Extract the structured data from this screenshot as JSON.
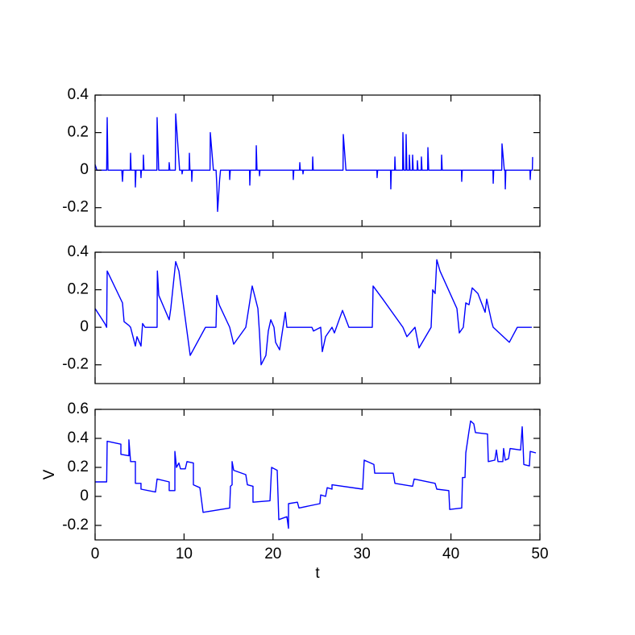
{
  "chart_data": [
    {
      "type": "line",
      "xlim": [
        0,
        50
      ],
      "xticks": [
        0,
        10,
        20,
        30,
        40,
        50
      ],
      "ylim": [
        -0.3,
        0.4
      ],
      "yticks": [
        -0.2,
        0,
        0.2,
        0.4
      ],
      "x": [
        0,
        0.2,
        1.3,
        1.36,
        1.45,
        3.0,
        3.08,
        3.15,
        3.95,
        3.99,
        4.05,
        4.5,
        4.53,
        4.6,
        5.12,
        5.16,
        5.2,
        5.4,
        5.43,
        5.5,
        6.95,
        6.97,
        7.15,
        8.3,
        8.33,
        8.4,
        9.02,
        9.06,
        9.5,
        9.75,
        9.78,
        9.85,
        10.57,
        10.6,
        10.66,
        10.84,
        10.87,
        10.93,
        12.92,
        12.95,
        13.3,
        13.6,
        13.7,
        13.77,
        14.0,
        14.1,
        15.1,
        15.13,
        15.2,
        17.36,
        17.39,
        17.45,
        18.09,
        18.12,
        18.2,
        18.45,
        18.48,
        18.54,
        22.25,
        22.28,
        22.34,
        22.98,
        23.01,
        23.07,
        23.34,
        23.37,
        23.43,
        24.43,
        24.46,
        24.52,
        27.87,
        27.9,
        28.2,
        31.67,
        31.7,
        31.76,
        33.21,
        33.24,
        33.3,
        33.67,
        33.7,
        33.76,
        34.57,
        34.6,
        34.7,
        34.93,
        34.96,
        35.05,
        35.3,
        35.33,
        35.4,
        35.66,
        35.69,
        35.76,
        36.2,
        36.23,
        36.3,
        36.65,
        36.68,
        36.75,
        37.38,
        37.41,
        37.5,
        38.92,
        38.95,
        39.02,
        41.18,
        41.21,
        41.27,
        44.72,
        44.75,
        44.81,
        45.71,
        45.74,
        46.0,
        46.08,
        46.11,
        46.17,
        48.88,
        48.91,
        48.97,
        49.15,
        49.18
      ],
      "series": [
        {
          "color": "#0000ff",
          "values": [
            0.03,
            0,
            0,
            0.28,
            0,
            0,
            -0.06,
            0,
            0,
            0.09,
            0,
            0,
            -0.09,
            0,
            0,
            -0.04,
            0,
            0,
            0.08,
            0,
            0,
            0.28,
            0,
            0,
            0.04,
            0,
            0,
            0.3,
            0,
            0,
            -0.02,
            0,
            0,
            0.09,
            0,
            0,
            -0.06,
            0,
            0,
            0.2,
            0,
            0,
            -0.1,
            -0.22,
            -0.05,
            0,
            0,
            -0.05,
            0,
            0,
            -0.08,
            0,
            0,
            0.13,
            0,
            0,
            -0.03,
            0,
            0,
            -0.05,
            0,
            0,
            0.04,
            0,
            0,
            -0.02,
            0,
            0,
            0.07,
            0,
            0,
            0.19,
            0,
            0,
            -0.04,
            0,
            0,
            -0.1,
            0,
            0,
            0.07,
            0,
            0,
            0.2,
            0,
            0,
            0.19,
            0,
            0,
            0.08,
            0,
            0,
            0.08,
            0,
            0,
            0.05,
            0,
            0,
            0.07,
            0,
            0,
            0.12,
            0,
            0,
            0.08,
            0,
            0,
            -0.06,
            0,
            0,
            -0.07,
            0,
            0,
            0.14,
            0,
            0,
            -0.1,
            0,
            0,
            -0.05,
            0,
            0,
            0.07
          ]
        }
      ]
    },
    {
      "type": "line",
      "xlim": [
        0,
        50
      ],
      "xticks": [
        0,
        10,
        20,
        30,
        40,
        50
      ],
      "ylim": [
        -0.3,
        0.4
      ],
      "yticks": [
        -0.2,
        0,
        0.2,
        0.4
      ],
      "x": [
        0,
        1.09,
        1.3,
        1.36,
        3.08,
        3.26,
        3.8,
        3.99,
        4.53,
        4.71,
        5.16,
        5.34,
        5.62,
        6.97,
        7.0,
        7.16,
        8.33,
        8.51,
        9.06,
        9.42,
        10.69,
        12.41,
        13.59,
        13.68,
        13.95,
        15.13,
        15.58,
        16.94,
        17.66,
        18.3,
        18.48,
        18.66,
        19.2,
        19.47,
        19.75,
        20.11,
        20.29,
        20.74,
        21.38,
        21.56,
        24.37,
        24.55,
        25.36,
        25.54,
        25.91,
        26.63,
        26.9,
        27.81,
        28.53,
        31.16,
        31.25,
        32.34,
        34.6,
        35.05,
        35.96,
        36.41,
        37.77,
        37.95,
        38.22,
        38.41,
        38.77,
        40.67,
        40.94,
        41.39,
        41.67,
        42.03,
        42.39,
        43.03,
        43.84,
        44.02,
        44.57,
        44.75,
        46.56,
        47.46,
        49.09
      ],
      "series": [
        {
          "color": "#0000ff",
          "values": [
            0.1,
            0.02,
            0,
            0.3,
            0.13,
            0.03,
            0.01,
            0,
            -0.1,
            -0.05,
            -0.1,
            0.02,
            0,
            0,
            0.3,
            0.17,
            0.04,
            0.1,
            0.35,
            0.3,
            -0.15,
            0,
            0,
            0.17,
            0.12,
            0,
            -0.09,
            0,
            0.22,
            0.1,
            -0.03,
            -0.2,
            -0.15,
            -0.02,
            0.04,
            0,
            -0.08,
            -0.12,
            0.08,
            0,
            0,
            -0.02,
            0,
            -0.13,
            -0.05,
            0,
            -0.03,
            0.09,
            0,
            0,
            0.22,
            0.15,
            0,
            -0.05,
            0,
            -0.11,
            0,
            0.2,
            0.18,
            0.36,
            0.3,
            0.1,
            -0.03,
            0,
            0.13,
            0.12,
            0.21,
            0.18,
            0.08,
            0.15,
            0.03,
            0,
            -0.08,
            0,
            0
          ]
        }
      ]
    },
    {
      "type": "line",
      "xlabel": "t",
      "ylabel": "V",
      "xlim": [
        0,
        50
      ],
      "xticks": [
        0,
        10,
        20,
        30,
        40,
        50
      ],
      "ylim": [
        -0.3,
        0.6
      ],
      "yticks": [
        -0.2,
        0,
        0.2,
        0.4,
        0.6
      ],
      "x": [
        0,
        1.3,
        1.36,
        2.9,
        2.9,
        3.8,
        3.8,
        3.99,
        4.53,
        4.53,
        5.16,
        5.16,
        6.79,
        6.97,
        8.33,
        8.33,
        8.97,
        8.97,
        9.15,
        9.42,
        9.6,
        10.14,
        10.33,
        11.05,
        11.05,
        11.78,
        12.14,
        15.13,
        15.22,
        15.4,
        15.4,
        15.58,
        16.94,
        17.12,
        17.75,
        17.75,
        19.66,
        19.84,
        20.47,
        20.56,
        20.65,
        21.56,
        21.74,
        21.74,
        22.74,
        22.92,
        25.27,
        25.36,
        25.91,
        26.09,
        26.63,
        26.63,
        30.07,
        30.25,
        31.34,
        31.43,
        33.51,
        33.7,
        35.69,
        35.87,
        38.22,
        38.41,
        39.76,
        39.86,
        41.21,
        41.3,
        41.58,
        41.67,
        42.03,
        42.21,
        42.57,
        42.75,
        44.11,
        44.2,
        44.93,
        45.11,
        45.29,
        45.83,
        45.92,
        46.11,
        46.47,
        46.65,
        47.83,
        48.01,
        48.1,
        48.19,
        48.82,
        48.91,
        49.55
      ],
      "series": [
        {
          "color": "#0000ff",
          "values": [
            0.1,
            0.1,
            0.38,
            0.36,
            0.29,
            0.28,
            0.39,
            0.24,
            0.24,
            0.09,
            0.09,
            0.05,
            0.03,
            0.12,
            0.1,
            0.04,
            0.04,
            0.31,
            0.2,
            0.23,
            0.19,
            0.19,
            0.24,
            0.23,
            0.08,
            0.06,
            -0.11,
            -0.08,
            0.07,
            0.08,
            0.24,
            0.18,
            0.15,
            0.08,
            0.07,
            -0.04,
            -0.03,
            0.2,
            0.18,
            0.01,
            -0.16,
            -0.14,
            -0.22,
            -0.05,
            -0.04,
            -0.08,
            -0.05,
            0.01,
            0,
            0.06,
            0.05,
            0.08,
            0.05,
            0.25,
            0.22,
            0.16,
            0.16,
            0.09,
            0.07,
            0.12,
            0.09,
            0.05,
            0.04,
            -0.09,
            -0.08,
            0.13,
            0.13,
            0.3,
            0.45,
            0.52,
            0.5,
            0.44,
            0.43,
            0.24,
            0.25,
            0.32,
            0.24,
            0.24,
            0.33,
            0.25,
            0.26,
            0.33,
            0.32,
            0.48,
            0.36,
            0.22,
            0.21,
            0.31,
            0.3
          ]
        }
      ]
    }
  ]
}
